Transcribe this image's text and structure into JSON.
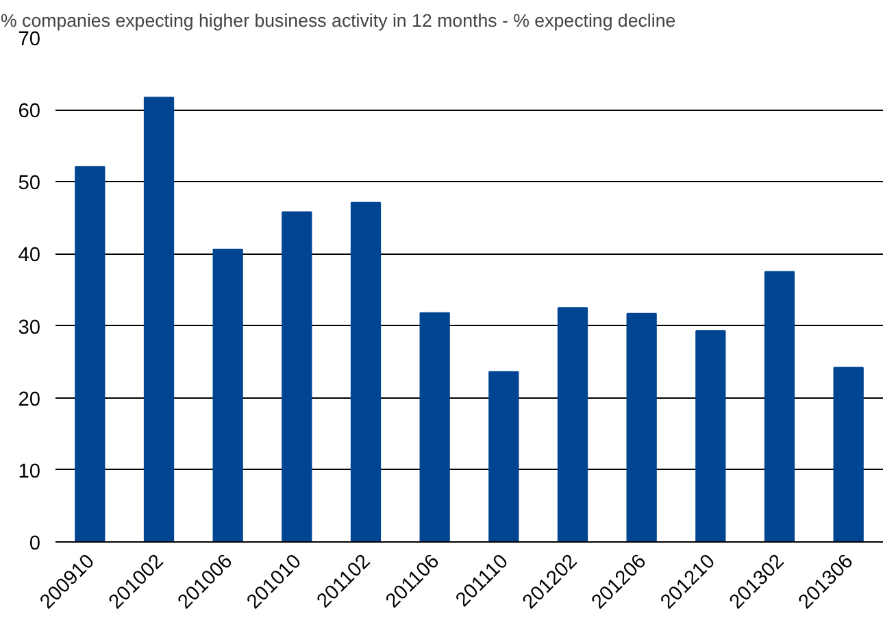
{
  "chart_data": {
    "type": "bar",
    "title": "% companies expecting higher business activity in 12 months -  % expecting decline",
    "categories": [
      "200910",
      "201002",
      "201006",
      "201010",
      "201102",
      "201106",
      "201110",
      "201202",
      "201206",
      "201210",
      "201302",
      "201306"
    ],
    "values": [
      52.1,
      61.7,
      40.6,
      45.8,
      47.1,
      31.8,
      23.6,
      32.5,
      31.7,
      29.3,
      37.5,
      24.2
    ],
    "color": "#004592",
    "ylim": [
      0,
      70
    ],
    "yticks": [
      0,
      10,
      20,
      30,
      40,
      50,
      60,
      70
    ],
    "grid": "y"
  }
}
